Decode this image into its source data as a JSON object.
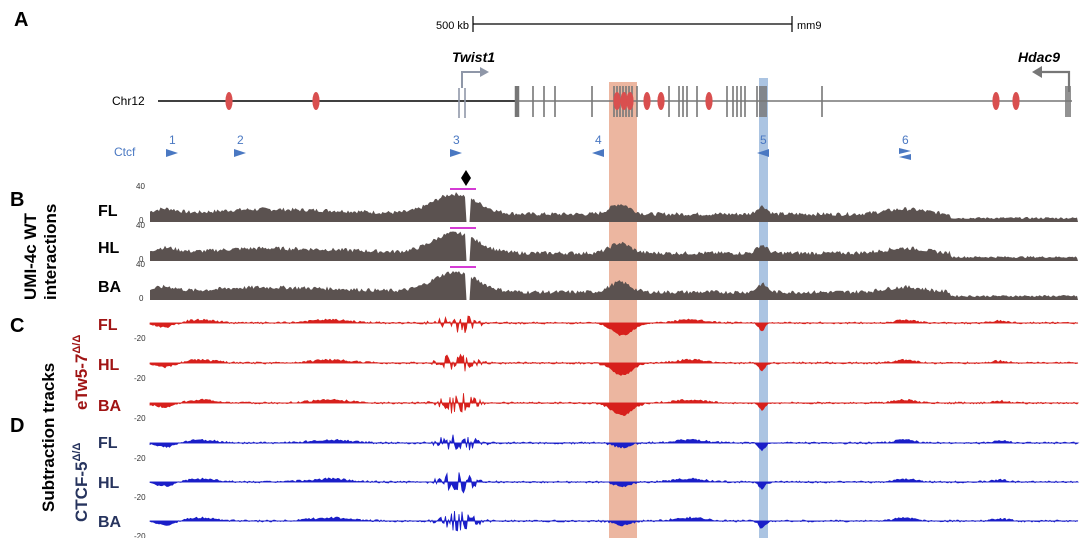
{
  "panels": {
    "a": "A",
    "b": "B",
    "c": "C",
    "d": "D"
  },
  "scale_bar": {
    "label": "500 kb",
    "assembly": "mm9"
  },
  "chromosome": "Chr12",
  "genes": {
    "twist1": "Twist1",
    "hdac9": "Hdac9"
  },
  "ctcf": {
    "label": "Ctcf",
    "sites": [
      "1",
      "2",
      "3",
      "4",
      "5",
      "6"
    ]
  },
  "section_labels": {
    "umi_line1": "UMI-4c WT",
    "umi_line2": "interactions",
    "subtraction": "Subtraction tracks",
    "etw": "eTw5-7",
    "ctcf5": "CTCF-5",
    "superscript": "Δ/Δ"
  },
  "tracks": {
    "wt": [
      "FL",
      "HL",
      "BA"
    ],
    "etw": [
      "FL",
      "HL",
      "BA"
    ],
    "ctcf": [
      "FL",
      "HL",
      "BA"
    ]
  },
  "axis_ticks": {
    "top": "40",
    "zero": "0",
    "neg": "-20"
  },
  "colors": {
    "wt": "#5b5250",
    "etw": "#d7201c",
    "etw_label": "#a01414",
    "ctcf": "#1a1ec8",
    "ctcf_label": "#27345e",
    "orange_band": "#e08560",
    "blue_band": "#8fb0d8",
    "enhancer": "#d94f4f",
    "ctcf_site": "#4a78c2"
  }
}
